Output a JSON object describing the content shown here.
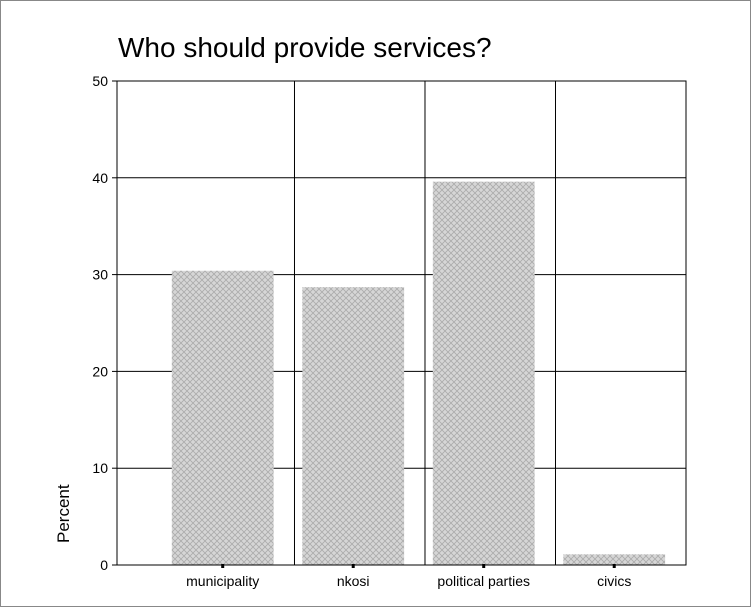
{
  "chart_data": {
    "type": "bar",
    "title": "Who should provide services?",
    "xlabel": "",
    "ylabel": "Percent",
    "categories": [
      "municipality",
      "nkosi",
      "political parties",
      "civics"
    ],
    "values": [
      30.4,
      28.7,
      39.6,
      1.1
    ],
    "ylim": [
      0,
      50
    ],
    "yticks": [
      "0",
      "10",
      "20",
      "30",
      "40",
      "50"
    ],
    "grid": true,
    "bar_fill": "#d0d0d0",
    "bar_pattern": "crosshatch"
  }
}
